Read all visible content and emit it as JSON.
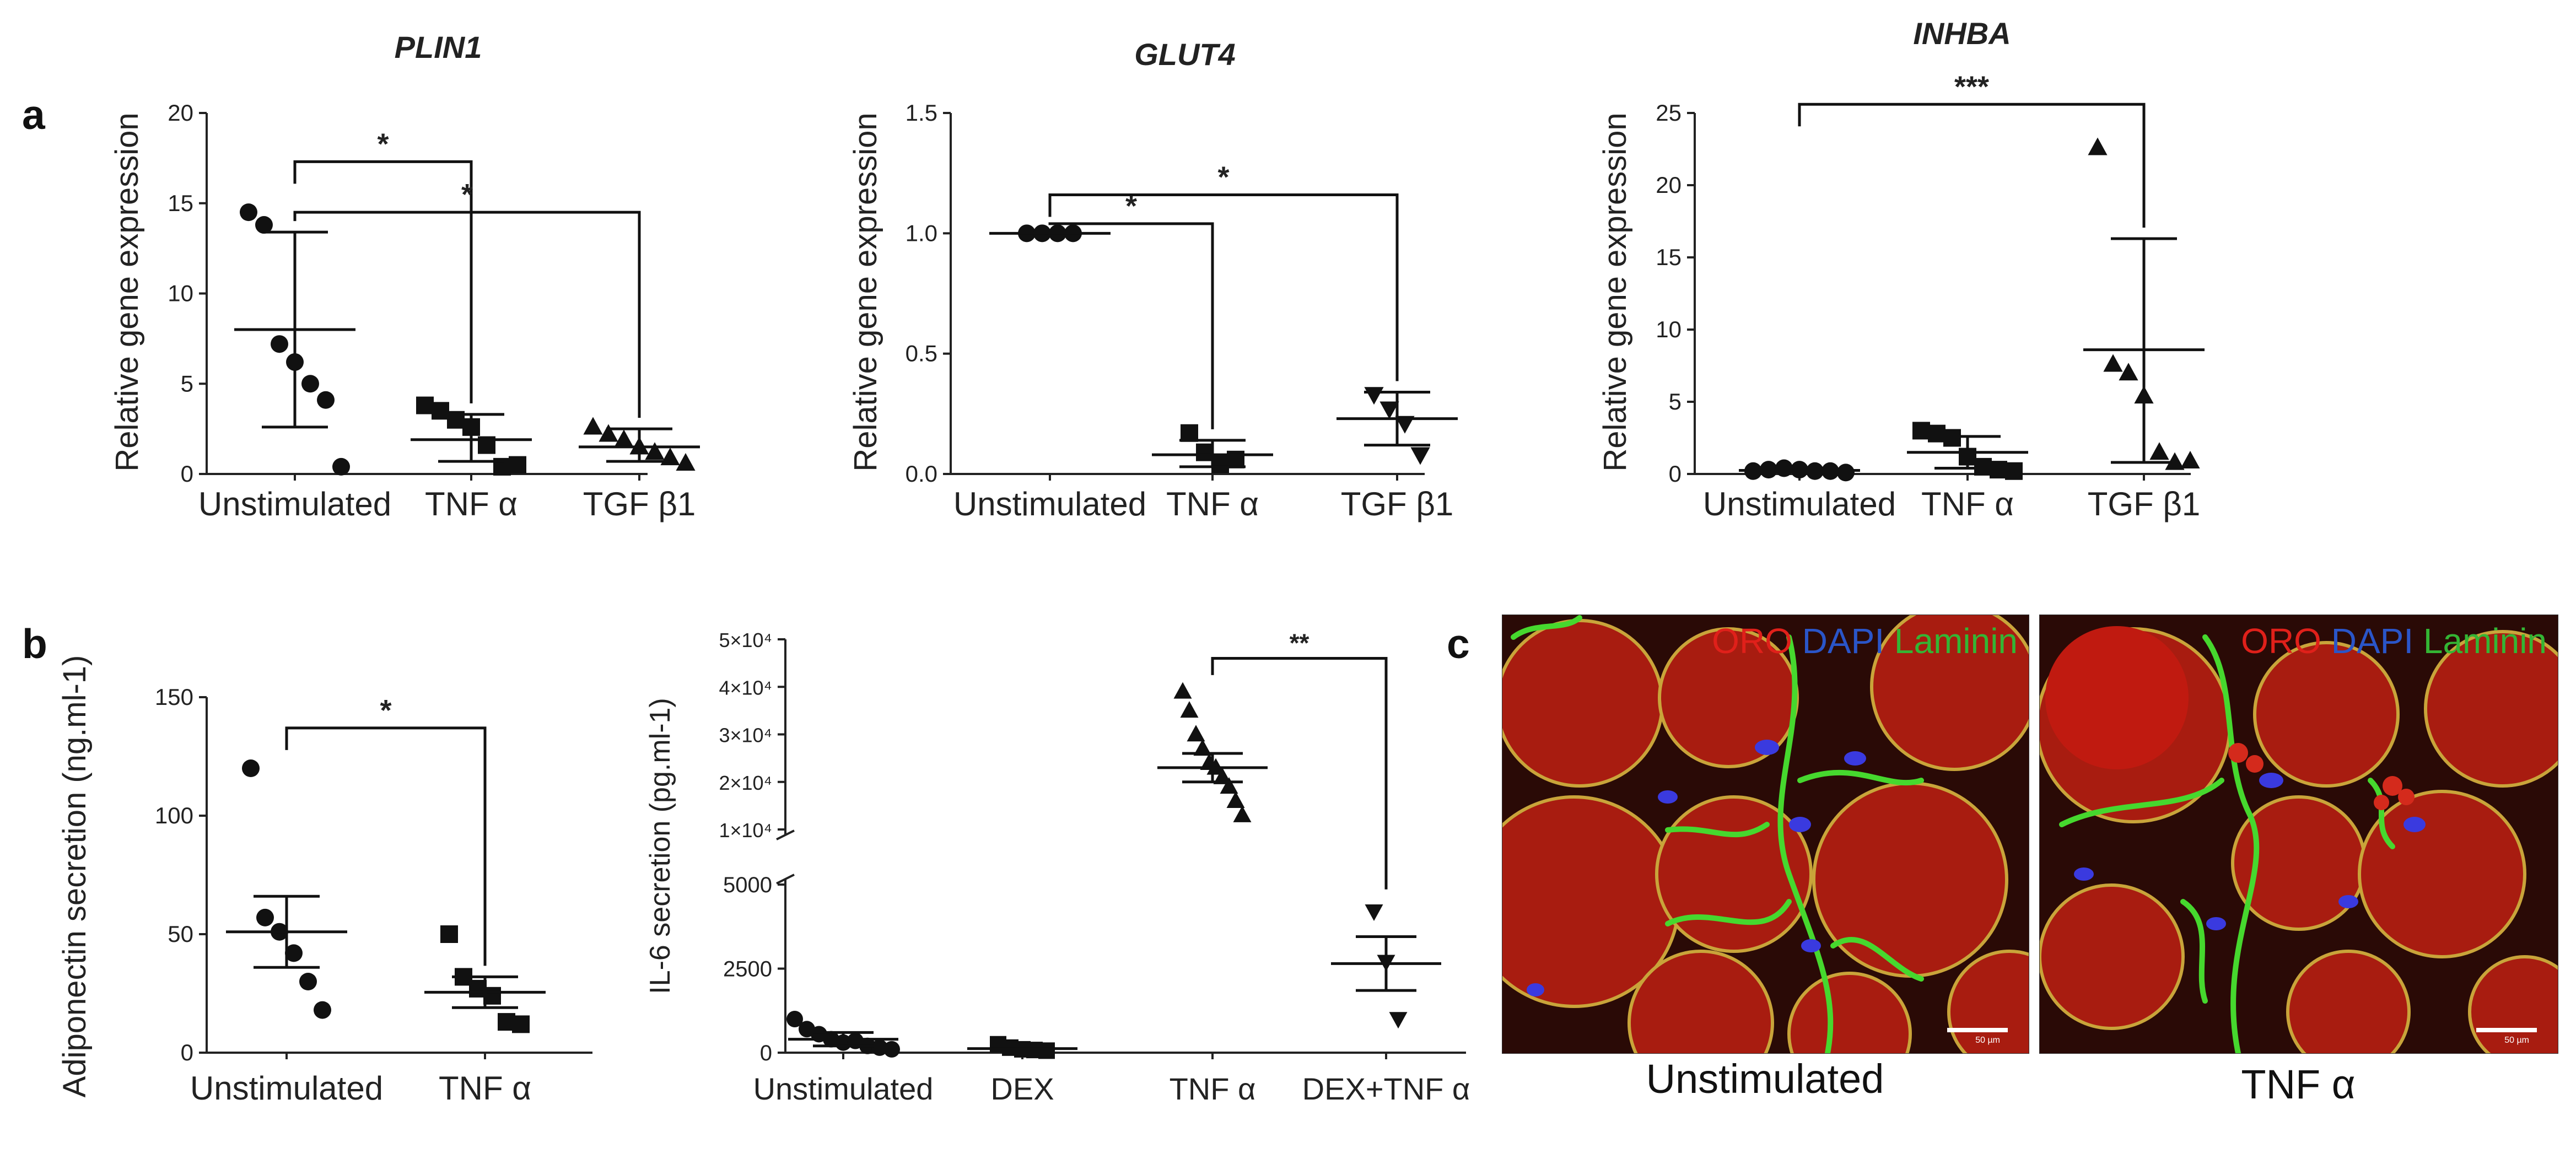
{
  "panel_labels": {
    "a": "a",
    "b": "b",
    "c": "c"
  },
  "chart_data": [
    {
      "id": "plin1",
      "type": "scatter",
      "title": "PLIN1",
      "ylabel": "Relative gene expression",
      "categories": [
        "Unstimulated",
        "TNF α",
        "TGF β1"
      ],
      "ylim": [
        0,
        20
      ],
      "yticks": [
        "0",
        "5",
        "10",
        "15",
        "20"
      ],
      "points": [
        [
          14.5,
          13.8,
          7.2,
          6.2,
          5.0,
          4.1,
          0.4
        ],
        [
          3.8,
          3.5,
          3.0,
          2.6,
          1.6,
          0.4,
          0.5
        ],
        [
          2.6,
          2.2,
          1.9,
          1.5,
          1.2,
          0.9,
          0.6
        ]
      ],
      "markers": [
        "circle",
        "square",
        "triangle"
      ],
      "mean": [
        8.0,
        1.9,
        1.5
      ],
      "err": [
        [
          2.6,
          13.4
        ],
        [
          0.7,
          3.3
        ],
        [
          0.7,
          2.5
        ]
      ],
      "sig": [
        {
          "from": 0,
          "to": 1,
          "y": 17.3,
          "label": "*"
        },
        {
          "from": 0,
          "to": 2,
          "y": 14.5,
          "label": "*"
        }
      ]
    },
    {
      "id": "glut4",
      "type": "scatter",
      "title": "GLUT4",
      "ylabel": "Relative gene expression",
      "categories": [
        "Unstimulated",
        "TNF α",
        "TGF β1"
      ],
      "ylim": [
        0,
        1.5
      ],
      "yticks": [
        "0.0",
        "0.5",
        "1.0",
        "1.5"
      ],
      "points": [
        [
          1.0,
          1.0,
          1.0,
          1.0
        ],
        [
          0.17,
          0.09,
          0.04,
          0.06
        ],
        [
          0.33,
          0.27,
          0.21,
          0.08
        ]
      ],
      "markers": [
        "circle",
        "square",
        "triangle-down"
      ],
      "mean": [
        1.0,
        0.08,
        0.23
      ],
      "err": [
        null,
        [
          0.03,
          0.14
        ],
        [
          0.12,
          0.34
        ]
      ],
      "sig": [
        {
          "from": 0,
          "to": 1,
          "y": 1.04,
          "label": "*"
        },
        {
          "from": 0,
          "to": 2,
          "y": 1.16,
          "label": "*"
        }
      ]
    },
    {
      "id": "inhba",
      "type": "scatter",
      "title": "INHBA",
      "ylabel": "Relative gene expression",
      "categories": [
        "Unstimulated",
        "TNF α",
        "TGF β1"
      ],
      "ylim": [
        0,
        25
      ],
      "yticks": [
        "0",
        "5",
        "10",
        "15",
        "20",
        "25"
      ],
      "points": [
        [
          0.2,
          0.3,
          0.4,
          0.3,
          0.2,
          0.2,
          0.1
        ],
        [
          3.0,
          2.8,
          2.5,
          1.2,
          0.5,
          0.3,
          0.2
        ],
        [
          22.6,
          7.6,
          7.0,
          5.4,
          1.5,
          0.8,
          0.9
        ]
      ],
      "markers": [
        "circle",
        "square",
        "triangle"
      ],
      "mean": [
        0.25,
        1.5,
        8.6
      ],
      "err": [
        null,
        [
          0.4,
          2.6
        ],
        [
          0.8,
          16.3
        ]
      ],
      "sig": [
        {
          "from": 0,
          "to": 2,
          "y": 25.6,
          "label": "***"
        }
      ]
    },
    {
      "id": "adiponectin",
      "type": "scatter",
      "title": "",
      "ylabel": "Adiponectin secretion (ng.ml-1)",
      "categories": [
        "Unstimulated",
        "TNF α"
      ],
      "ylim": [
        0,
        150
      ],
      "yticks": [
        "0",
        "50",
        "100",
        "150"
      ],
      "points": [
        [
          120,
          57,
          51,
          42,
          30,
          18
        ],
        [
          50,
          32,
          27,
          24,
          13,
          12
        ]
      ],
      "markers": [
        "circle",
        "square"
      ],
      "mean": [
        51,
        25.5
      ],
      "err": [
        [
          36,
          66
        ],
        [
          19,
          32
        ]
      ],
      "sig": [
        {
          "from": 0,
          "to": 1,
          "y": 137,
          "label": "*"
        }
      ]
    },
    {
      "id": "il6",
      "type": "scatter",
      "title": "",
      "ylabel": "IL-6 secretion (pg.ml-1)",
      "categories": [
        "Unstimulated",
        "DEX",
        "TNF α",
        "DEX+TNF α"
      ],
      "axis_break": true,
      "ylim_lower": [
        0,
        5000
      ],
      "ylim_upper": [
        10000,
        50000
      ],
      "yticks_lower": [
        "0",
        "2500",
        "5000"
      ],
      "yticks_upper": [
        "1×10⁴",
        "2×10⁴",
        "3×10⁴",
        "4×10⁴",
        "5×10⁴"
      ],
      "points": [
        [
          1000,
          700,
          550,
          400,
          300,
          350,
          200,
          150,
          100
        ],
        [
          250,
          150,
          100,
          80,
          60
        ],
        [
          39000,
          35000,
          30000,
          27000,
          24000,
          23000,
          21000,
          19000,
          16000,
          13000
        ],
        [
          4200,
          2700,
          1000
        ]
      ],
      "markers": [
        "circle",
        "square",
        "triangle",
        "triangle-down"
      ],
      "mean": [
        400,
        120,
        23000,
        2650
      ],
      "err": [
        [
          200,
          600
        ],
        null,
        [
          20000,
          26000
        ],
        [
          1850,
          3450
        ]
      ],
      "sig": [
        {
          "from": 2,
          "to": 3,
          "y": 46000,
          "label": "**"
        }
      ]
    }
  ],
  "micrographs": [
    {
      "id": "unstim",
      "caption": "Unstimulated",
      "legend": {
        "oro": "ORO",
        "dapi": "DAPI",
        "laminin": "Laminin"
      },
      "scalebar": "50 µm",
      "colors": {
        "lipid": "#b01e12",
        "laminin": "#3fcf2a",
        "dapi": "#3a3adf"
      }
    },
    {
      "id": "tnf",
      "caption": "TNF α",
      "legend": {
        "oro": "ORO",
        "dapi": "DAPI",
        "laminin": "Laminin"
      },
      "scalebar": "50 µm",
      "colors": {
        "lipid": "#b01e12",
        "laminin": "#3fcf2a",
        "dapi": "#3a3adf"
      }
    }
  ]
}
